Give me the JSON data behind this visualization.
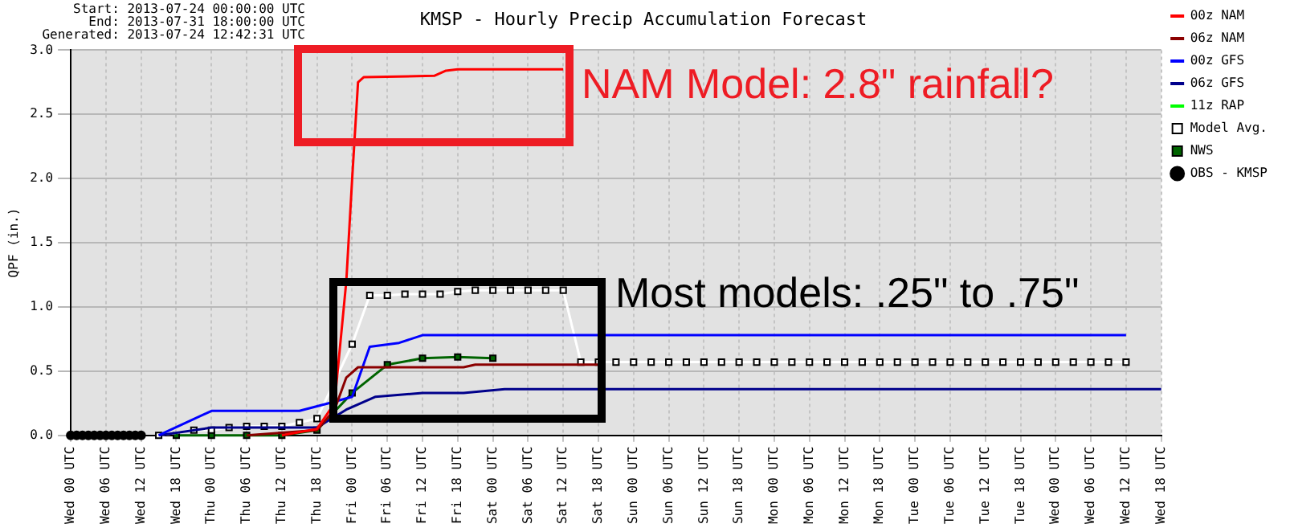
{
  "chart_data": {
    "type": "line",
    "title": "KMSP - Hourly Precip Accumulation Forecast",
    "ylabel": "QPF (in.)",
    "annotations": [
      "Start: 2013-07-24 00:00:00 UTC",
      "End: 2013-07-31 18:00:00 UTC",
      "Generated: 2013-07-24 12:42:31 UTC",
      "NAM Model: 2.8\" rainfall?",
      "Most models: .25\" to .75\""
    ],
    "xlim": [
      "2013-07-24T00:00",
      "2013-07-31T18:00"
    ],
    "xticks": [
      {
        "value": "2013-07-24T00:00",
        "label": "Wed 00 UTC"
      },
      {
        "value": "2013-07-24T06:00",
        "label": "Wed 06 UTC"
      },
      {
        "value": "2013-07-24T12:00",
        "label": "Wed 12 UTC"
      },
      {
        "value": "2013-07-24T18:00",
        "label": "Wed 18 UTC"
      },
      {
        "value": "2013-07-25T00:00",
        "label": "Thu 00 UTC"
      },
      {
        "value": "2013-07-25T06:00",
        "label": "Thu 06 UTC"
      },
      {
        "value": "2013-07-25T12:00",
        "label": "Thu 12 UTC"
      },
      {
        "value": "2013-07-25T18:00",
        "label": "Thu 18 UTC"
      },
      {
        "value": "2013-07-26T00:00",
        "label": "Fri 00 UTC"
      },
      {
        "value": "2013-07-26T06:00",
        "label": "Fri 06 UTC"
      },
      {
        "value": "2013-07-26T12:00",
        "label": "Fri 12 UTC"
      },
      {
        "value": "2013-07-26T18:00",
        "label": "Fri 18 UTC"
      },
      {
        "value": "2013-07-27T00:00",
        "label": "Sat 00 UTC"
      },
      {
        "value": "2013-07-27T06:00",
        "label": "Sat 06 UTC"
      },
      {
        "value": "2013-07-27T12:00",
        "label": "Sat 12 UTC"
      },
      {
        "value": "2013-07-27T18:00",
        "label": "Sat 18 UTC"
      },
      {
        "value": "2013-07-28T00:00",
        "label": "Sun 00 UTC"
      },
      {
        "value": "2013-07-28T06:00",
        "label": "Sun 06 UTC"
      },
      {
        "value": "2013-07-28T12:00",
        "label": "Sun 12 UTC"
      },
      {
        "value": "2013-07-28T18:00",
        "label": "Sun 18 UTC"
      },
      {
        "value": "2013-07-29T00:00",
        "label": "Mon 00 UTC"
      },
      {
        "value": "2013-07-29T06:00",
        "label": "Mon 06 UTC"
      },
      {
        "value": "2013-07-29T12:00",
        "label": "Mon 12 UTC"
      },
      {
        "value": "2013-07-29T18:00",
        "label": "Mon 18 UTC"
      },
      {
        "value": "2013-07-30T00:00",
        "label": "Tue 00 UTC"
      },
      {
        "value": "2013-07-30T06:00",
        "label": "Tue 06 UTC"
      },
      {
        "value": "2013-07-30T12:00",
        "label": "Tue 12 UTC"
      },
      {
        "value": "2013-07-30T18:00",
        "label": "Tue 18 UTC"
      },
      {
        "value": "2013-07-31T00:00",
        "label": "Wed 00 UTC"
      },
      {
        "value": "2013-07-31T06:00",
        "label": "Wed 06 UTC"
      },
      {
        "value": "2013-07-31T12:00",
        "label": "Wed 12 UTC"
      },
      {
        "value": "2013-07-31T18:00",
        "label": "Wed 18 UTC"
      }
    ],
    "ylim": [
      0,
      3
    ],
    "yticks": [
      {
        "value": 0,
        "label": "0.0"
      },
      0.5,
      {
        "value": 1,
        "label": "1.0"
      },
      1.5,
      {
        "value": 2,
        "label": "2.0"
      },
      2.5,
      {
        "value": 3,
        "label": "3.0"
      }
    ],
    "grid": true,
    "legend": "top right",
    "series": [
      {
        "name": "00z NAM",
        "color": "#ff0000",
        "marker": "none",
        "x": [
          "2013-07-25T12:00",
          "2013-07-25T18:00",
          "2013-07-25T21:00",
          "2013-07-25T23:00",
          "2013-07-26T00:00",
          "2013-07-26T01:00",
          "2013-07-26T02:00",
          "2013-07-26T14:00",
          "2013-07-26T16:00",
          "2013-07-26T18:00",
          "2013-07-27T12:00"
        ],
        "values": [
          0,
          0.05,
          0.25,
          1.2,
          2.0,
          2.75,
          2.79,
          2.8,
          2.84,
          2.85,
          2.85
        ]
      },
      {
        "name": "06z NAM",
        "color": "#8b0000",
        "marker": "none",
        "x": [
          "2013-07-25T06:00",
          "2013-07-25T18:00",
          "2013-07-25T21:00",
          "2013-07-25T23:00",
          "2013-07-26T01:00",
          "2013-07-26T19:00",
          "2013-07-26T21:00",
          "2013-07-27T18:00"
        ],
        "values": [
          0,
          0.04,
          0.2,
          0.45,
          0.53,
          0.53,
          0.55,
          0.55
        ]
      },
      {
        "name": "00z GFS",
        "color": "#0000ff",
        "marker": "none",
        "x": [
          "2013-07-24T15:00",
          "2013-07-25T00:00",
          "2013-07-25T15:00",
          "2013-07-25T20:00",
          "2013-07-26T00:00",
          "2013-07-26T03:00",
          "2013-07-26T08:00",
          "2013-07-26T12:00",
          "2013-07-31T12:00"
        ],
        "values": [
          0,
          0.19,
          0.19,
          0.25,
          0.3,
          0.69,
          0.72,
          0.78,
          0.78
        ]
      },
      {
        "name": "06z GFS",
        "color": "#00008b",
        "marker": "none",
        "x": [
          "2013-07-24T15:00",
          "2013-07-25T00:00",
          "2013-07-25T18:00",
          "2013-07-25T23:00",
          "2013-07-26T04:00",
          "2013-07-26T12:00",
          "2013-07-26T19:00",
          "2013-07-27T02:00",
          "2013-07-31T18:00"
        ],
        "values": [
          0,
          0.06,
          0.06,
          0.2,
          0.3,
          0.33,
          0.33,
          0.36,
          0.36
        ]
      },
      {
        "name": "11z RAP",
        "color": "#00ff00",
        "marker": "none"
      },
      {
        "name": "Model Avg.",
        "color": "#ffffff",
        "marker": "square",
        "x": [
          "2013-07-24T15:00",
          "2013-07-24T21:00",
          "2013-07-25T00:00",
          "2013-07-25T03:00",
          "2013-07-25T06:00",
          "2013-07-25T09:00",
          "2013-07-25T12:00",
          "2013-07-25T15:00",
          "2013-07-25T18:00",
          "2013-07-26T00:00",
          "2013-07-26T03:00",
          "2013-07-26T06:00",
          "2013-07-26T09:00",
          "2013-07-26T12:00",
          "2013-07-26T15:00",
          "2013-07-26T18:00",
          "2013-07-26T21:00",
          "2013-07-27T00:00",
          "2013-07-27T03:00",
          "2013-07-27T06:00",
          "2013-07-27T09:00",
          "2013-07-27T12:00",
          "2013-07-27T15:00",
          "2013-07-27T18:00",
          "2013-07-27T21:00",
          "2013-07-28T00:00",
          "2013-07-28T03:00",
          "2013-07-28T06:00",
          "2013-07-28T09:00",
          "2013-07-28T12:00",
          "2013-07-28T15:00",
          "2013-07-28T18:00",
          "2013-07-28T21:00",
          "2013-07-29T00:00",
          "2013-07-29T03:00",
          "2013-07-29T06:00",
          "2013-07-29T09:00",
          "2013-07-29T12:00",
          "2013-07-29T15:00",
          "2013-07-29T18:00",
          "2013-07-29T21:00",
          "2013-07-30T00:00",
          "2013-07-30T03:00",
          "2013-07-30T06:00",
          "2013-07-30T09:00",
          "2013-07-30T12:00",
          "2013-07-30T15:00",
          "2013-07-30T18:00",
          "2013-07-30T21:00",
          "2013-07-31T00:00",
          "2013-07-31T03:00",
          "2013-07-31T06:00",
          "2013-07-31T09:00",
          "2013-07-31T12:00"
        ],
        "values": [
          0,
          0.04,
          0.04,
          0.06,
          0.07,
          0.07,
          0.07,
          0.1,
          0.13,
          0.71,
          1.09,
          1.09,
          1.1,
          1.1,
          1.1,
          1.12,
          1.13,
          1.13,
          1.13,
          1.13,
          1.13,
          1.13,
          0.57,
          0.57,
          0.57,
          0.57,
          0.57,
          0.57,
          0.57,
          0.57,
          0.57,
          0.57,
          0.57,
          0.57,
          0.57,
          0.57,
          0.57,
          0.57,
          0.57,
          0.57,
          0.57,
          0.57,
          0.57,
          0.57,
          0.57,
          0.57,
          0.57,
          0.57,
          0.57,
          0.57,
          0.57,
          0.57,
          0.57,
          0.57
        ]
      },
      {
        "name": "NWS",
        "color": "#006400",
        "marker": "square",
        "x": [
          "2013-07-24T18:00",
          "2013-07-25T00:00",
          "2013-07-25T06:00",
          "2013-07-25T12:00",
          "2013-07-25T18:00",
          "2013-07-26T00:00",
          "2013-07-26T06:00",
          "2013-07-26T12:00",
          "2013-07-26T18:00",
          "2013-07-27T00:00"
        ],
        "values": [
          0,
          0,
          0,
          0,
          0.04,
          0.33,
          0.55,
          0.6,
          0.61,
          0.6
        ]
      },
      {
        "name": "OBS - KMSP",
        "type": "scatter",
        "color": "#000000",
        "marker": "circle",
        "x": [
          "2013-07-24T00:00",
          "2013-07-24T01:00",
          "2013-07-24T02:00",
          "2013-07-24T03:00",
          "2013-07-24T04:00",
          "2013-07-24T05:00",
          "2013-07-24T06:00",
          "2013-07-24T07:00",
          "2013-07-24T08:00",
          "2013-07-24T09:00",
          "2013-07-24T10:00",
          "2013-07-24T11:00",
          "2013-07-24T12:00"
        ],
        "values": [
          0,
          0,
          0,
          0,
          0,
          0,
          0,
          0,
          0,
          0,
          0,
          0,
          0
        ]
      }
    ]
  }
}
